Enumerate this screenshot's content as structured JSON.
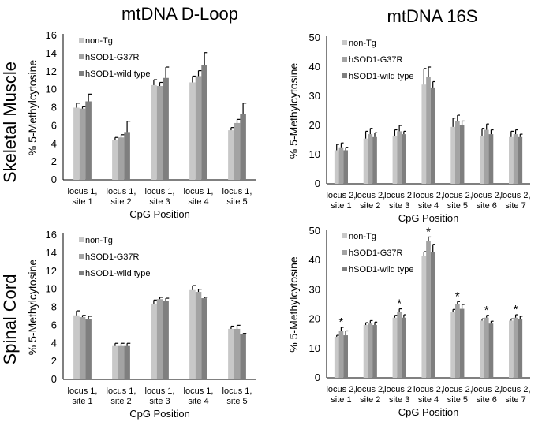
{
  "titles": {
    "col_left": "mtDNA D-Loop",
    "col_right": "mtDNA 16S",
    "row_top": "Skeletal Muscle",
    "row_bottom": "Spinal Cord"
  },
  "colors": {
    "non-Tg": "#c8c8c8",
    "hSOD1-G37R": "#a3a3a3",
    "hSOD1-wild type": "#7f7f7f",
    "error_bar": "#000000",
    "axis": "#000000"
  },
  "chart_data": [
    {
      "id": "sm-dloop",
      "type": "bar",
      "title": "mtDNA D-Loop — Skeletal Muscle",
      "xlabel": "CpG Position",
      "ylabel": "% 5-Methylcytosine",
      "ylim": [
        0,
        16
      ],
      "yticks": [
        0,
        2,
        4,
        6,
        8,
        10,
        12,
        14,
        16
      ],
      "categories": [
        [
          "locus 1,",
          "site 1"
        ],
        [
          "locus 1,",
          "site 2"
        ],
        [
          "locus 1,",
          "site 3"
        ],
        [
          "locus 1,",
          "site 4"
        ],
        [
          "locus 1,",
          "site 5"
        ]
      ],
      "legend_position": "top-left",
      "series": [
        {
          "name": "non-Tg",
          "values": [
            8.0,
            4.4,
            10.5,
            10.8,
            5.5
          ],
          "errors": [
            0.5,
            0.3,
            0.6,
            0.7,
            0.3
          ]
        },
        {
          "name": "hSOD1-G37R",
          "values": [
            7.9,
            4.7,
            10.4,
            11.5,
            6.3
          ],
          "errors": [
            0.2,
            0.3,
            0.4,
            0.6,
            0.4
          ]
        },
        {
          "name": "hSOD1-wild type",
          "values": [
            8.7,
            5.3,
            11.3,
            12.7,
            7.3
          ],
          "errors": [
            0.8,
            1.2,
            1.2,
            1.4,
            1.2
          ]
        }
      ],
      "significant": []
    },
    {
      "id": "sm-16s",
      "type": "bar",
      "title": "mtDNA 16S — Skeletal Muscle",
      "xlabel": "CpG Position",
      "ylabel": "% 5-Methylcytosine",
      "ylim": [
        0,
        50
      ],
      "yticks": [
        0,
        10,
        20,
        30,
        40,
        50
      ],
      "categories": [
        [
          "locus 2,",
          "site 1"
        ],
        [
          "locus 2,",
          "site 2"
        ],
        [
          "locus 2,",
          "site 3"
        ],
        [
          "locus 2,",
          "site 4"
        ],
        [
          "locus 2,",
          "site 5"
        ],
        [
          "locus 2,",
          "site 6"
        ],
        [
          "locus 2,",
          "site 7"
        ]
      ],
      "legend_position": "top-left",
      "series": [
        {
          "name": "non-Tg",
          "values": [
            11.5,
            15.5,
            16.5,
            34.0,
            19.5,
            16.5,
            16.0
          ],
          "errors": [
            2.0,
            2.5,
            2.0,
            5.5,
            3.0,
            2.5,
            2.0
          ]
        },
        {
          "name": "hSOD1-G37R",
          "values": [
            12.5,
            17.0,
            18.0,
            36.5,
            21.5,
            18.5,
            17.0
          ],
          "errors": [
            1.5,
            2.0,
            2.0,
            3.5,
            2.0,
            2.0,
            1.5
          ]
        },
        {
          "name": "hSOD1-wild type",
          "values": [
            11.5,
            16.0,
            17.0,
            33.0,
            20.0,
            17.0,
            16.0
          ],
          "errors": [
            1.0,
            1.5,
            1.0,
            2.0,
            1.5,
            1.5,
            1.0
          ]
        }
      ],
      "significant": []
    },
    {
      "id": "sc-dloop",
      "type": "bar",
      "title": "mtDNA D-Loop — Spinal Cord",
      "xlabel": "CpG Position",
      "ylabel": "% 5-Methylcytosine",
      "ylim": [
        0,
        16
      ],
      "yticks": [
        0,
        2,
        4,
        6,
        8,
        10,
        12,
        14,
        16
      ],
      "categories": [
        [
          "locus 1,",
          "site 1"
        ],
        [
          "locus 1,",
          "site 2"
        ],
        [
          "locus 1,",
          "site 3"
        ],
        [
          "locus 1,",
          "site 4"
        ],
        [
          "locus 1,",
          "site 5"
        ]
      ],
      "legend_position": "top-left",
      "series": [
        {
          "name": "non-Tg",
          "values": [
            7.1,
            3.7,
            8.4,
            9.9,
            5.6
          ],
          "errors": [
            0.5,
            0.3,
            0.4,
            0.5,
            0.3
          ]
        },
        {
          "name": "hSOD1-G37R",
          "values": [
            6.9,
            3.7,
            8.9,
            9.7,
            5.6
          ],
          "errors": [
            0.2,
            0.3,
            0.2,
            0.3,
            0.4
          ]
        },
        {
          "name": "hSOD1-wild type",
          "values": [
            6.7,
            3.7,
            8.7,
            9.0,
            5.0
          ],
          "errors": [
            0.3,
            0.3,
            0.3,
            0.1,
            0.1
          ]
        }
      ],
      "significant": []
    },
    {
      "id": "sc-16s",
      "type": "bar",
      "title": "mtDNA 16S — Spinal Cord",
      "xlabel": "CpG Position",
      "ylabel": "% 5-Methylcytosine",
      "ylim": [
        0,
        50
      ],
      "yticks": [
        0,
        10,
        20,
        30,
        40,
        50
      ],
      "categories": [
        [
          "locus 2,",
          "site 1"
        ],
        [
          "locus 2,",
          "site 2"
        ],
        [
          "locus 2,",
          "site 3"
        ],
        [
          "locus 2,",
          "site 4"
        ],
        [
          "locus 2,",
          "site 5"
        ],
        [
          "locus 2,",
          "site 6"
        ],
        [
          "locus 2,",
          "site 7"
        ]
      ],
      "legend_position": "top-left",
      "series": [
        {
          "name": "non-Tg",
          "values": [
            14.0,
            18.0,
            20.5,
            41.5,
            22.5,
            19.5,
            19.5
          ],
          "errors": [
            0.5,
            0.8,
            0.8,
            1.5,
            0.8,
            0.6,
            0.6
          ]
        },
        {
          "name": "hSOD1-G37R",
          "values": [
            16.0,
            18.5,
            22.5,
            46.5,
            25.0,
            20.5,
            20.5
          ],
          "errors": [
            1.2,
            1.0,
            1.0,
            1.5,
            1.0,
            0.8,
            1.0
          ]
        },
        {
          "name": "hSOD1-wild type",
          "values": [
            14.5,
            18.0,
            20.5,
            43.0,
            23.5,
            18.5,
            20.0
          ],
          "errors": [
            1.5,
            1.0,
            1.0,
            2.5,
            1.5,
            0.8,
            1.0
          ]
        }
      ],
      "significant": [
        0,
        2,
        3,
        4,
        5,
        6
      ],
      "significance_marker": "*"
    }
  ]
}
